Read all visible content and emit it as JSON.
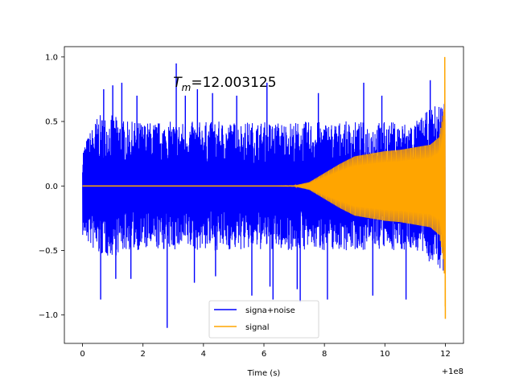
{
  "chart_data": {
    "type": "line",
    "title": "",
    "xlabel": "Time (s)",
    "ylabel": "",
    "x_offset_label": "+1e8",
    "xlim": [
      -0.6,
      12.6
    ],
    "ylim": [
      -1.22,
      1.08
    ],
    "x_ticks": [
      0,
      2,
      4,
      6,
      8,
      10,
      12
    ],
    "x_tick_labels": [
      "0",
      "2",
      "4",
      "6",
      "8",
      "10",
      "12"
    ],
    "y_ticks": [
      -1.0,
      -0.5,
      0.0,
      0.5,
      1.0
    ],
    "y_tick_labels": [
      "−1.0",
      "−0.5",
      "0.0",
      "0.5",
      "1.0"
    ],
    "grid": false,
    "legend_position": "lower-center",
    "annotation": {
      "prefix": "T",
      "subscript": "m",
      "text": "=12.003125",
      "x": 3.0,
      "y": 0.8
    },
    "series": [
      {
        "name": "signa+noise",
        "color": "#0000ff",
        "x": [
          0.0,
          0.5,
          1.0,
          1.5,
          2.0,
          2.5,
          3.0,
          3.5,
          4.0,
          4.5,
          5.0,
          5.5,
          6.0,
          6.5,
          7.0,
          7.5,
          8.0,
          8.5,
          9.0,
          9.5,
          10.0,
          10.5,
          11.0,
          11.5,
          12.0
        ],
        "upper": [
          0.3,
          0.55,
          0.55,
          0.5,
          0.5,
          0.5,
          0.5,
          0.5,
          0.5,
          0.5,
          0.5,
          0.5,
          0.5,
          0.5,
          0.5,
          0.5,
          0.5,
          0.5,
          0.5,
          0.5,
          0.5,
          0.5,
          0.5,
          0.6,
          0.7
        ],
        "lower": [
          -0.4,
          -0.55,
          -0.55,
          -0.5,
          -0.5,
          -0.5,
          -0.5,
          -0.5,
          -0.5,
          -0.5,
          -0.5,
          -0.5,
          -0.5,
          -0.5,
          -0.5,
          -0.5,
          -0.5,
          -0.5,
          -0.5,
          -0.5,
          -0.5,
          -0.5,
          -0.5,
          -0.6,
          -0.7
        ],
        "spikes": [
          {
            "x": 0.7,
            "y": 0.75
          },
          {
            "x": 1.0,
            "y": 0.78
          },
          {
            "x": 1.3,
            "y": 0.8
          },
          {
            "x": 1.8,
            "y": 0.7
          },
          {
            "x": 3.1,
            "y": 0.95
          },
          {
            "x": 3.4,
            "y": 0.7
          },
          {
            "x": 3.8,
            "y": 0.75
          },
          {
            "x": 4.3,
            "y": 0.72
          },
          {
            "x": 5.1,
            "y": 0.7
          },
          {
            "x": 6.1,
            "y": 0.8
          },
          {
            "x": 7.8,
            "y": 0.72
          },
          {
            "x": 9.3,
            "y": 0.8
          },
          {
            "x": 9.9,
            "y": 0.7
          },
          {
            "x": 11.5,
            "y": 0.82
          },
          {
            "x": 0.6,
            "y": -0.88
          },
          {
            "x": 1.1,
            "y": -0.72
          },
          {
            "x": 1.6,
            "y": -0.72
          },
          {
            "x": 2.8,
            "y": -1.1
          },
          {
            "x": 3.7,
            "y": -0.75
          },
          {
            "x": 4.4,
            "y": -0.7
          },
          {
            "x": 5.6,
            "y": -0.85
          },
          {
            "x": 6.2,
            "y": -0.78
          },
          {
            "x": 6.3,
            "y": -0.88
          },
          {
            "x": 7.1,
            "y": -0.8
          },
          {
            "x": 7.2,
            "y": -0.9
          },
          {
            "x": 8.1,
            "y": -0.88
          },
          {
            "x": 9.6,
            "y": -0.85
          },
          {
            "x": 10.7,
            "y": -0.88
          }
        ]
      },
      {
        "name": "signal",
        "color": "#ffa500",
        "x": [
          0.0,
          6.0,
          7.0,
          7.5,
          8.0,
          8.5,
          9.0,
          9.5,
          10.0,
          10.5,
          11.0,
          11.5,
          11.8,
          11.95,
          12.0
        ],
        "amplitude": [
          0.0,
          0.0,
          0.003,
          0.03,
          0.1,
          0.17,
          0.23,
          0.25,
          0.27,
          0.28,
          0.3,
          0.32,
          0.38,
          0.6,
          1.0
        ]
      }
    ]
  }
}
